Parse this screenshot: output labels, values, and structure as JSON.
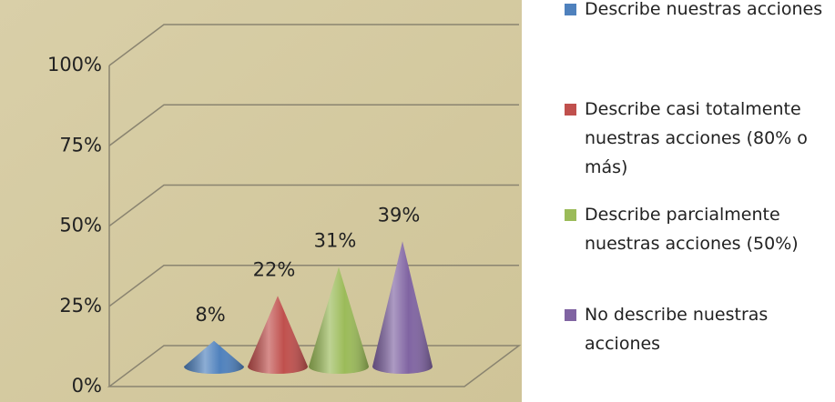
{
  "chart_data": {
    "type": "cone",
    "series": [
      {
        "name": "Describe nuestras acciones",
        "color": "#4f81bd",
        "values": [
          8
        ],
        "value_labels": [
          "8%"
        ]
      },
      {
        "name": "Describe casi totalmente nuestras acciones (80% o más)",
        "color": "#c0504d",
        "values": [
          22
        ],
        "value_labels": [
          "22%"
        ]
      },
      {
        "name": "Describe parcialmente nuestras acciones (50%)",
        "color": "#9bbb59",
        "values": [
          31
        ],
        "value_labels": [
          "31%"
        ]
      },
      {
        "name": "No describe nuestras acciones",
        "color": "#8064a2",
        "values": [
          39
        ],
        "value_labels": [
          "39%"
        ]
      }
    ],
    "ylim": [
      0,
      100
    ],
    "yticks": [
      {
        "value": 0,
        "label": "0%"
      },
      {
        "value": 25,
        "label": "25%"
      },
      {
        "value": 50,
        "label": "50%"
      },
      {
        "value": 75,
        "label": "75%"
      },
      {
        "value": 100,
        "label": "100%"
      }
    ],
    "grid": true,
    "legend": "right"
  }
}
